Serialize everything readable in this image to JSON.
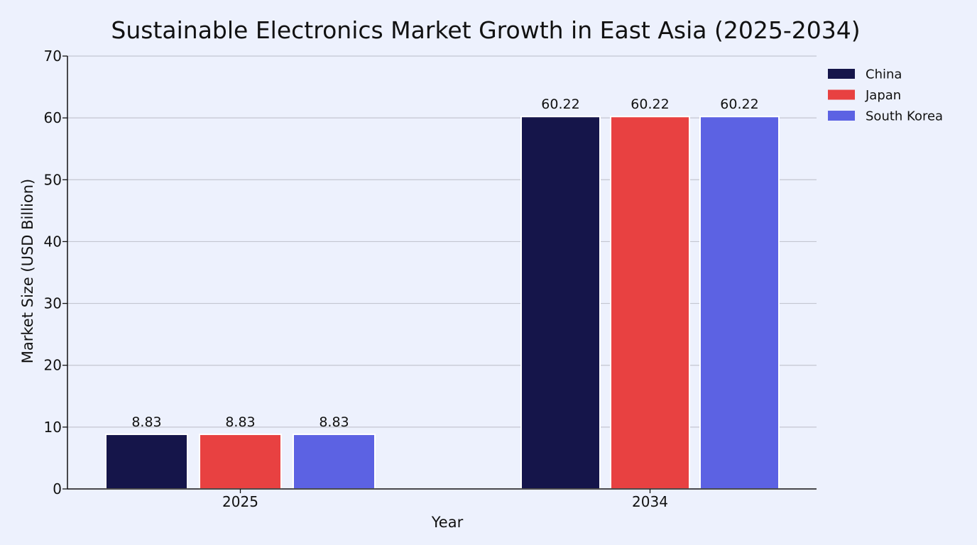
{
  "chart_data": {
    "type": "bar",
    "title": "Sustainable Electronics Market Growth in East Asia (2025-2034)",
    "xlabel": "Year",
    "ylabel": "Market Size (USD Billion)",
    "categories": [
      "2025",
      "2034"
    ],
    "series": [
      {
        "name": "China",
        "values": [
          8.83,
          60.22
        ],
        "color": "#15154a"
      },
      {
        "name": "Japan",
        "values": [
          8.83,
          60.22
        ],
        "color": "#e84141"
      },
      {
        "name": "South Korea",
        "values": [
          8.83,
          60.22
        ],
        "color": "#5c62e3"
      }
    ],
    "ylim": [
      0,
      70
    ],
    "yticks": [
      0,
      10,
      20,
      30,
      40,
      50,
      60,
      70
    ],
    "grid": true,
    "legend_position": "top-right",
    "data_labels": true
  }
}
